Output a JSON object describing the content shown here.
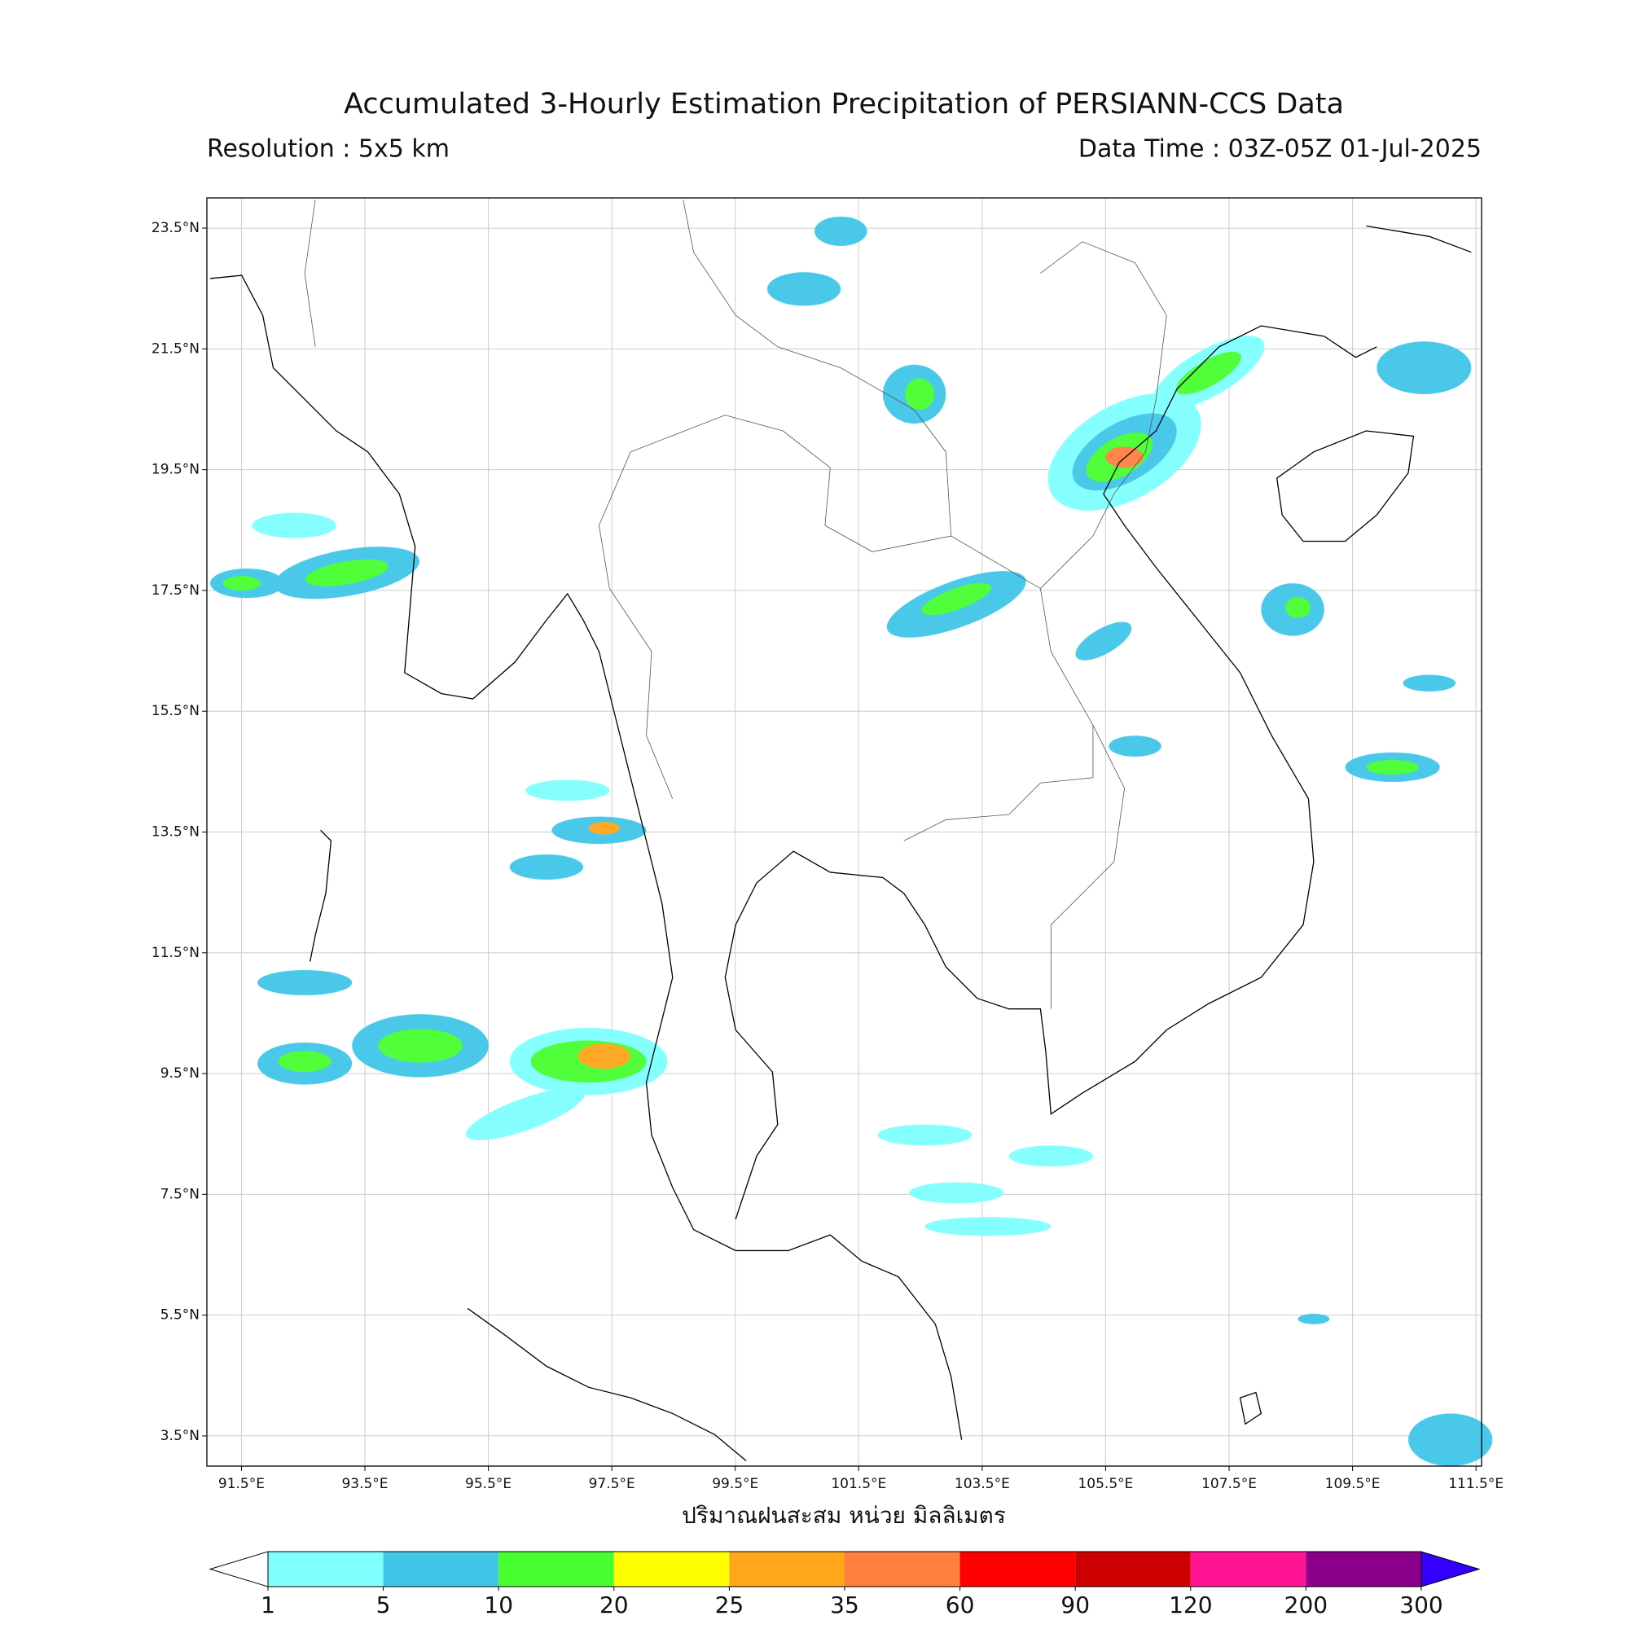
{
  "title": "Accumulated 3-Hourly Estimation Precipitation of PERSIANN-CCS Data",
  "resolution": "Resolution : 5x5 km",
  "data_time": "Data Time : 03Z-05Z 01-Jul-2025",
  "map": {
    "xlim": [
      90.94,
      111.59
    ],
    "ylim": [
      3.0,
      24.0
    ],
    "grid": true,
    "xticks": [
      {
        "value": 91.5,
        "label": "91.5°E"
      },
      {
        "value": 93.5,
        "label": "93.5°E"
      },
      {
        "value": 95.5,
        "label": "95.5°E"
      },
      {
        "value": 97.5,
        "label": "97.5°E"
      },
      {
        "value": 99.5,
        "label": "99.5°E"
      },
      {
        "value": 101.5,
        "label": "101.5°E"
      },
      {
        "value": 103.5,
        "label": "103.5°E"
      },
      {
        "value": 105.5,
        "label": "105.5°E"
      },
      {
        "value": 107.5,
        "label": "107.5°E"
      },
      {
        "value": 109.5,
        "label": "109.5°E"
      },
      {
        "value": 111.5,
        "label": "111.5°E"
      }
    ],
    "yticks": [
      {
        "value": 3.5,
        "label": "3.5°N"
      },
      {
        "value": 5.5,
        "label": "5.5°N"
      },
      {
        "value": 7.5,
        "label": "7.5°N"
      },
      {
        "value": 9.5,
        "label": "9.5°N"
      },
      {
        "value": 11.5,
        "label": "11.5°N"
      },
      {
        "value": 13.5,
        "label": "13.5°N"
      },
      {
        "value": 15.5,
        "label": "15.5°N"
      },
      {
        "value": 17.5,
        "label": "17.5°N"
      },
      {
        "value": 19.5,
        "label": "19.5°N"
      },
      {
        "value": 21.5,
        "label": "21.5°N"
      },
      {
        "value": 23.5,
        "label": "23.5°N"
      }
    ]
  },
  "x_axis_label": "ปริมาณฝนสะสม หน่วย มิลลิเมตร",
  "colorbar": {
    "levels": [
      1,
      5,
      10,
      20,
      25,
      35,
      60,
      90,
      120,
      200,
      300
    ],
    "colors": [
      "#80ffff",
      "#41c6e8",
      "#47ff2f",
      "#ffff00",
      "#ffa61a",
      "#ff7f3f",
      "#ff0000",
      "#cc0000",
      "#ff1493",
      "#8b008b"
    ],
    "under_color": "#ffffff",
    "over_color": "#3300ff"
  }
}
